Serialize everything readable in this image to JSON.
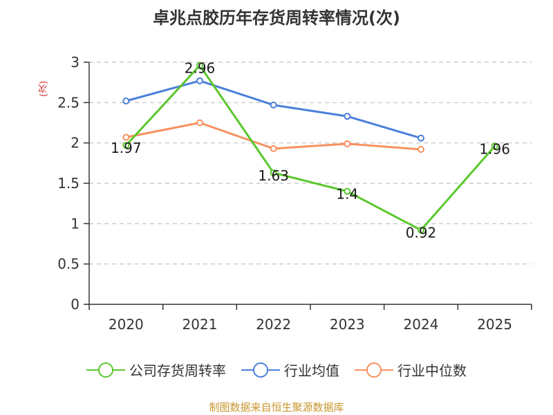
{
  "title": "卓兆点胶历年存货周转率情况(次)",
  "footer": "制图数据来自恒生聚源数据库",
  "chart_data": {
    "type": "line",
    "title": "卓兆点胶历年存货周转率情况(次)",
    "ylabel": "(次)",
    "xlabel": "",
    "categories": [
      "2020",
      "2021",
      "2022",
      "2023",
      "2024",
      "2025"
    ],
    "ylim": [
      0,
      3
    ],
    "yticks": [
      0,
      0.5,
      1,
      1.5,
      2,
      2.5,
      3
    ],
    "ytick_labels": [
      "0",
      "0.5",
      "1",
      "1.5",
      "2",
      "2.5",
      "3"
    ],
    "grid": true,
    "legend_position": "bottom",
    "series": [
      {
        "name": "公司存货周转率",
        "color": "#5ac72c",
        "values": [
          1.97,
          2.96,
          1.63,
          1.4,
          0.92,
          1.96
        ],
        "labels": [
          "1.97",
          "2.96",
          "1.63",
          "1.4",
          "0.92",
          "1.96"
        ],
        "show_labels": true
      },
      {
        "name": "行业均值",
        "color": "#4a7fdb",
        "values": [
          2.52,
          2.77,
          2.47,
          2.33,
          2.06,
          null
        ],
        "show_labels": false
      },
      {
        "name": "行业中位数",
        "color": "#f89060",
        "values": [
          2.07,
          2.25,
          1.93,
          1.99,
          1.92,
          null
        ],
        "show_labels": false
      }
    ]
  }
}
